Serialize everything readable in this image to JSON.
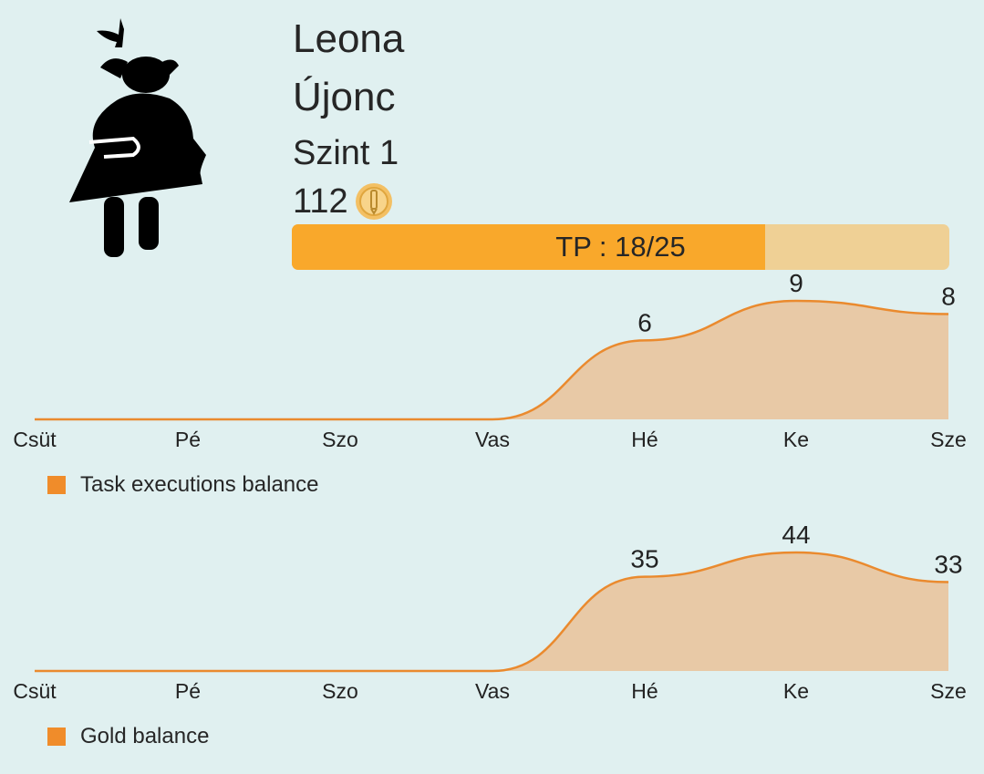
{
  "profile": {
    "name": "Leona",
    "rank": "Újonc",
    "level": "Szint 1",
    "gold": "112",
    "avatar_icon": "girl-silhouette-icon",
    "coin_icon": "gold-coin-icon"
  },
  "tp": {
    "label": "TP : 18/25",
    "current": 18,
    "max": 25,
    "colors": {
      "fill": "#f9a82b",
      "track": "#efd095"
    }
  },
  "colors": {
    "background": "#e0f0f0",
    "series_line": "#ea8a2e",
    "series_fill": "#e8c9a6",
    "legend_swatch": "#f08c2a"
  },
  "chart_data": [
    {
      "type": "area",
      "categories": [
        "Csüt",
        "Pé",
        "Szo",
        "Vas",
        "Hé",
        "Ke",
        "Sze"
      ],
      "series": [
        {
          "name": "Task executions balance",
          "values": [
            0,
            0,
            0,
            0,
            6,
            9,
            8
          ]
        }
      ],
      "data_labels": [
        "",
        "",
        "",
        "",
        "6",
        "9",
        "8"
      ],
      "legend": "bottom-left",
      "grid": false
    },
    {
      "type": "area",
      "categories": [
        "Csüt",
        "Pé",
        "Szo",
        "Vas",
        "Hé",
        "Ke",
        "Sze"
      ],
      "series": [
        {
          "name": "Gold balance",
          "values": [
            0,
            0,
            0,
            0,
            35,
            44,
            33
          ]
        }
      ],
      "data_labels": [
        "",
        "",
        "",
        "",
        "35",
        "44",
        "33"
      ],
      "legend": "bottom-left",
      "grid": false
    }
  ]
}
